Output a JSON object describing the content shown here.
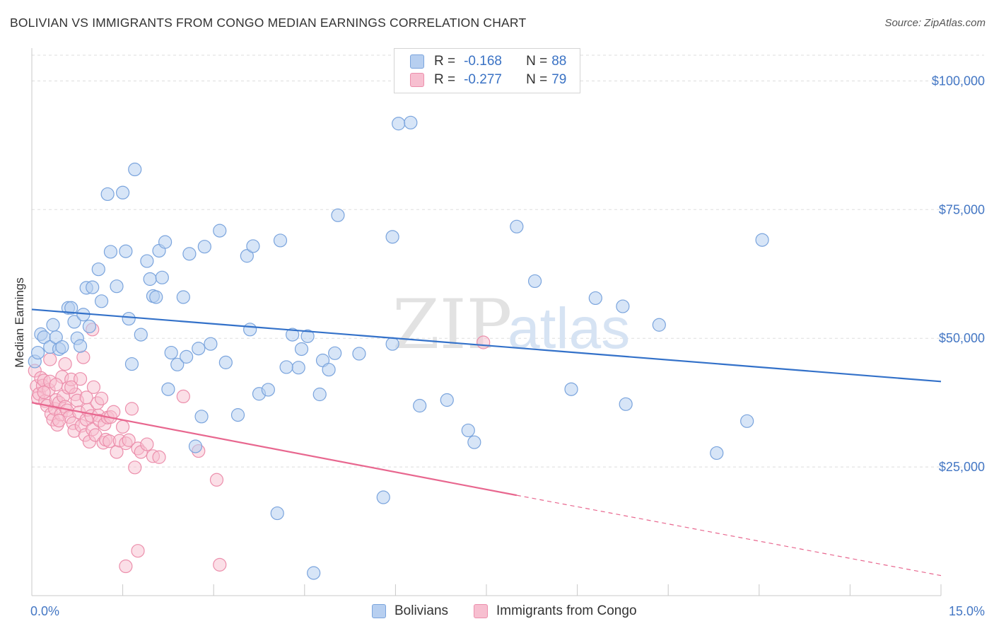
{
  "header": {
    "title": "BOLIVIAN VS IMMIGRANTS FROM CONGO MEDIAN EARNINGS CORRELATION CHART",
    "source": "Source: ZipAtlas.com"
  },
  "watermark": {
    "zip": "ZIP",
    "atlas": "atlas"
  },
  "legend": {
    "rows": [
      {
        "r_label": "R =",
        "r_value": "-0.168",
        "n_label": "N =",
        "n_value": "88"
      },
      {
        "r_label": "R =",
        "r_value": "-0.277",
        "n_label": "N =",
        "n_value": "79"
      }
    ]
  },
  "bottom_legend": {
    "series1": "Bolivians",
    "series2": "Immigrants from Congo"
  },
  "colors": {
    "blue_fill": "#b7cff0",
    "blue_stroke": "#7aa4dd",
    "blue_line": "#3371c9",
    "pink_fill": "#f7bfd0",
    "pink_stroke": "#ec8fac",
    "pink_line": "#e8678f",
    "grid": "#dddddd",
    "tick_text": "#4477c4"
  },
  "chart_data": {
    "type": "scatter",
    "title": "BOLIVIAN VS IMMIGRANTS FROM CONGO MEDIAN EARNINGS CORRELATION CHART",
    "xlabel": "",
    "ylabel": "Median Earnings",
    "xlim": [
      0,
      15
    ],
    "ylim": [
      0,
      105000
    ],
    "x_tick_labels": [
      "0.0%",
      "15.0%"
    ],
    "y_ticks": [
      25000,
      50000,
      75000,
      100000
    ],
    "y_tick_labels": [
      "$25,000",
      "$50,000",
      "$75,000",
      "$100,000"
    ],
    "grid": true,
    "legend_position": "top-center",
    "series": [
      {
        "name": "Bolivians",
        "r": -0.168,
        "n": 88,
        "trend": {
          "x": [
            0,
            15
          ],
          "y": [
            55600,
            41600
          ]
        },
        "points": [
          [
            0.05,
            45500
          ],
          [
            0.1,
            47200
          ],
          [
            0.15,
            50800
          ],
          [
            0.2,
            50200
          ],
          [
            0.3,
            48300
          ],
          [
            0.35,
            52600
          ],
          [
            0.4,
            50200
          ],
          [
            0.45,
            47900
          ],
          [
            0.5,
            48300
          ],
          [
            0.6,
            55900
          ],
          [
            0.65,
            55900
          ],
          [
            0.7,
            53200
          ],
          [
            0.75,
            50000
          ],
          [
            0.8,
            48500
          ],
          [
            0.85,
            54600
          ],
          [
            0.9,
            59800
          ],
          [
            0.95,
            52300
          ],
          [
            1.0,
            59900
          ],
          [
            1.1,
            63400
          ],
          [
            1.15,
            57200
          ],
          [
            1.25,
            78000
          ],
          [
            1.3,
            66800
          ],
          [
            1.4,
            60100
          ],
          [
            1.5,
            78300
          ],
          [
            1.6,
            53800
          ],
          [
            1.65,
            45000
          ],
          [
            1.7,
            82800
          ],
          [
            1.8,
            50700
          ],
          [
            1.9,
            65000
          ],
          [
            1.95,
            61500
          ],
          [
            2.0,
            58200
          ],
          [
            2.05,
            58000
          ],
          [
            2.1,
            67000
          ],
          [
            2.15,
            61800
          ],
          [
            2.2,
            68700
          ],
          [
            2.25,
            40100
          ],
          [
            2.3,
            47200
          ],
          [
            2.4,
            44900
          ],
          [
            2.5,
            58000
          ],
          [
            2.55,
            46400
          ],
          [
            2.6,
            66400
          ],
          [
            2.7,
            29000
          ],
          [
            2.75,
            48000
          ],
          [
            2.8,
            34800
          ],
          [
            2.85,
            67800
          ],
          [
            2.95,
            48900
          ],
          [
            3.1,
            70900
          ],
          [
            3.2,
            45300
          ],
          [
            3.4,
            35100
          ],
          [
            3.55,
            66000
          ],
          [
            3.6,
            51700
          ],
          [
            3.65,
            67900
          ],
          [
            3.75,
            39200
          ],
          [
            3.9,
            40000
          ],
          [
            4.05,
            16000
          ],
          [
            4.1,
            69000
          ],
          [
            4.3,
            50700
          ],
          [
            4.4,
            44300
          ],
          [
            4.45,
            47900
          ],
          [
            4.55,
            50400
          ],
          [
            4.75,
            39100
          ],
          [
            4.8,
            45700
          ],
          [
            4.9,
            43900
          ],
          [
            5.0,
            47100
          ],
          [
            5.05,
            73900
          ],
          [
            5.4,
            47000
          ],
          [
            5.8,
            19100
          ],
          [
            5.95,
            48900
          ],
          [
            5.95,
            69700
          ],
          [
            6.05,
            91700
          ],
          [
            6.25,
            91900
          ],
          [
            6.4,
            36900
          ],
          [
            6.85,
            38000
          ],
          [
            7.2,
            32100
          ],
          [
            7.3,
            29800
          ],
          [
            8.0,
            71700
          ],
          [
            8.3,
            61100
          ],
          [
            8.9,
            40100
          ],
          [
            9.3,
            57800
          ],
          [
            9.75,
            56200
          ],
          [
            9.8,
            37200
          ],
          [
            10.35,
            52600
          ],
          [
            11.3,
            27700
          ],
          [
            11.8,
            33900
          ],
          [
            12.05,
            69100
          ],
          [
            4.65,
            4400
          ],
          [
            4.2,
            44400
          ],
          [
            1.55,
            66900
          ]
        ]
      },
      {
        "name": "Immigrants from Congo",
        "r": -0.277,
        "n": 79,
        "trend": {
          "x": [
            0,
            8.0,
            15
          ],
          "y": [
            37500,
            19500,
            3900
          ]
        },
        "points": [
          [
            0.05,
            43700
          ],
          [
            0.08,
            40700
          ],
          [
            0.1,
            38400
          ],
          [
            0.12,
            39200
          ],
          [
            0.15,
            42300
          ],
          [
            0.18,
            40800
          ],
          [
            0.2,
            41800
          ],
          [
            0.22,
            37800
          ],
          [
            0.25,
            36900
          ],
          [
            0.28,
            40000
          ],
          [
            0.3,
            41600
          ],
          [
            0.32,
            35300
          ],
          [
            0.35,
            34200
          ],
          [
            0.38,
            36300
          ],
          [
            0.4,
            38000
          ],
          [
            0.42,
            33200
          ],
          [
            0.45,
            37500
          ],
          [
            0.48,
            35200
          ],
          [
            0.5,
            42500
          ],
          [
            0.52,
            38700
          ],
          [
            0.55,
            36700
          ],
          [
            0.58,
            36000
          ],
          [
            0.6,
            40400
          ],
          [
            0.62,
            34700
          ],
          [
            0.65,
            42000
          ],
          [
            0.68,
            33500
          ],
          [
            0.7,
            32000
          ],
          [
            0.72,
            39100
          ],
          [
            0.75,
            37900
          ],
          [
            0.78,
            35600
          ],
          [
            0.8,
            42100
          ],
          [
            0.82,
            33000
          ],
          [
            0.85,
            46300
          ],
          [
            0.88,
            31200
          ],
          [
            0.9,
            34200
          ],
          [
            0.92,
            36100
          ],
          [
            0.95,
            29900
          ],
          [
            0.98,
            34900
          ],
          [
            1.0,
            32300
          ],
          [
            1.02,
            40500
          ],
          [
            1.05,
            31200
          ],
          [
            1.08,
            37400
          ],
          [
            1.1,
            35000
          ],
          [
            1.12,
            34000
          ],
          [
            1.15,
            38300
          ],
          [
            1.18,
            29700
          ],
          [
            1.2,
            33300
          ],
          [
            1.22,
            30300
          ],
          [
            1.25,
            34600
          ],
          [
            1.28,
            30000
          ],
          [
            1.3,
            34700
          ],
          [
            1.35,
            35700
          ],
          [
            1.4,
            27900
          ],
          [
            1.45,
            30100
          ],
          [
            1.5,
            32800
          ],
          [
            1.55,
            29600
          ],
          [
            1.6,
            30200
          ],
          [
            1.65,
            36300
          ],
          [
            1.7,
            24900
          ],
          [
            1.75,
            28600
          ],
          [
            1.8,
            27900
          ],
          [
            1.9,
            29400
          ],
          [
            2.0,
            27100
          ],
          [
            2.1,
            26900
          ],
          [
            2.5,
            38700
          ],
          [
            2.75,
            28100
          ],
          [
            3.05,
            22500
          ],
          [
            3.1,
            6000
          ],
          [
            1.55,
            5700
          ],
          [
            1.75,
            8700
          ],
          [
            7.45,
            49200
          ],
          [
            1.0,
            51700
          ],
          [
            0.3,
            45900
          ],
          [
            0.55,
            45000
          ],
          [
            0.4,
            41000
          ],
          [
            0.65,
            40500
          ],
          [
            0.2,
            39500
          ],
          [
            0.45,
            34000
          ],
          [
            0.9,
            38500
          ]
        ]
      }
    ]
  }
}
